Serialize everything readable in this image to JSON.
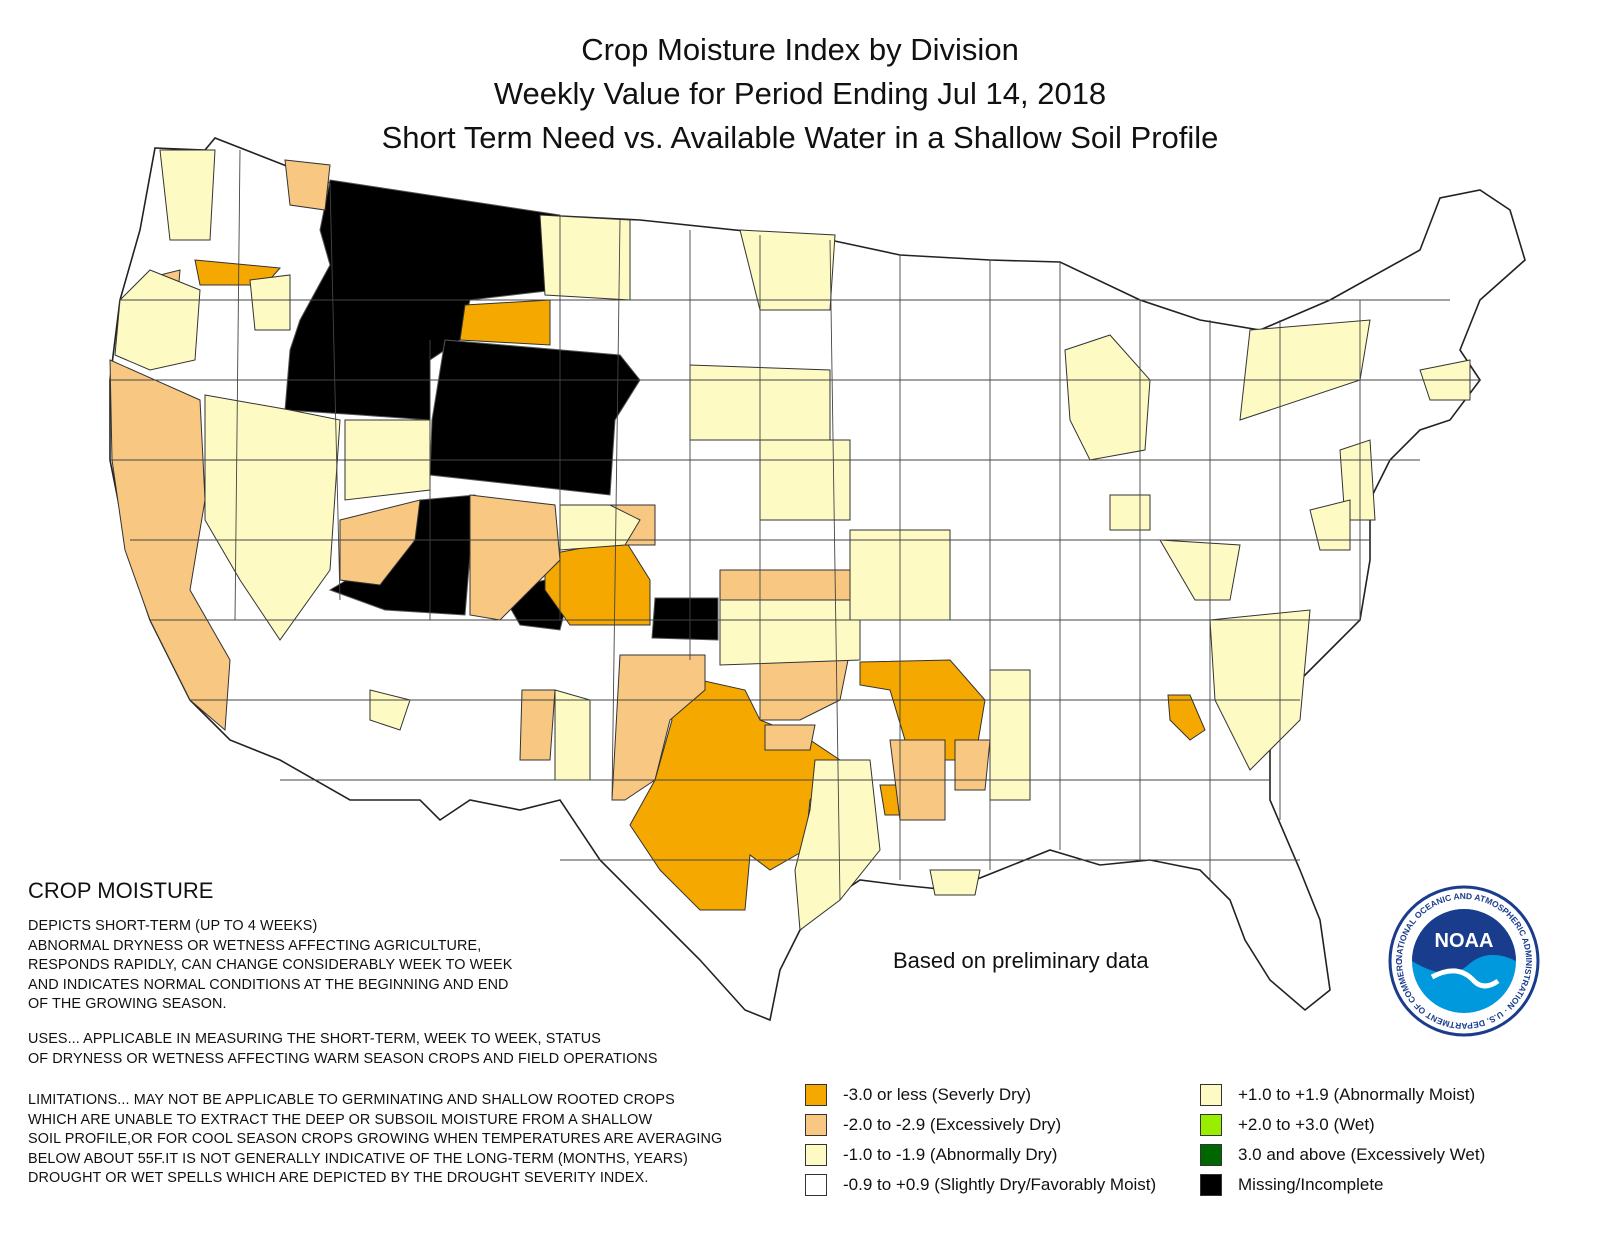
{
  "title": {
    "line1": "Crop Moisture Index by Division",
    "line2": "Weekly Value for Period Ending Jul 14, 2018",
    "line3": "Short Term Need vs. Available Water in a Shallow Soil Profile"
  },
  "note": "Based on preliminary data",
  "info": {
    "heading": "CROP MOISTURE",
    "depicts": "DEPICTS SHORT-TERM (UP TO 4 WEEKS)\nABNORMAL DRYNESS OR WETNESS AFFECTING AGRICULTURE,\nRESPONDS RAPIDLY, CAN CHANGE CONSIDERABLY WEEK TO WEEK\nAND INDICATES NORMAL CONDITIONS AT THE BEGINNING AND END\nOF THE GROWING SEASON.",
    "uses": "USES... APPLICABLE IN MEASURING THE SHORT-TERM, WEEK TO WEEK, STATUS\nOF DRYNESS OR WETNESS AFFECTING WARM SEASON CROPS AND FIELD OPERATIONS",
    "limitations": "LIMITATIONS... MAY NOT BE APPLICABLE TO GERMINATING AND SHALLOW ROOTED CROPS\nWHICH ARE UNABLE TO EXTRACT THE DEEP OR SUBSOIL MOISTURE FROM A SHALLOW\nSOIL PROFILE,OR FOR COOL SEASON CROPS GROWING WHEN TEMPERATURES ARE AVERAGING\nBELOW ABOUT 55F.IT IS NOT GENERALLY INDICATIVE OF THE LONG-TERM (MONTHS, YEARS)\nDROUGHT OR WET SPELLS WHICH ARE DEPICTED BY THE DROUGHT SEVERITY INDEX."
  },
  "legend": [
    {
      "label": "-3.0 or less (Severly Dry)",
      "color": "#f5a800"
    },
    {
      "label": "-2.0 to -2.9 (Excessively Dry)",
      "color": "#f8c882"
    },
    {
      "label": "-1.0 to -1.9 (Abnormally Dry)",
      "color": "#fdfbc3"
    },
    {
      "label": "-0.9 to +0.9 (Slightly Dry/Favorably Moist)",
      "color": "#ffffff"
    },
    {
      "label": "+1.0 to +1.9 (Abnormally Moist)",
      "color": "#fdfbc3"
    },
    {
      "label": "+2.0 to +3.0 (Wet)",
      "color": "#99ee00"
    },
    {
      "label": "3.0 and above (Excessively Wet)",
      "color": "#006600"
    },
    {
      "label": "Missing/Incomplete",
      "color": "#000000"
    }
  ],
  "logo": {
    "text": "NOAA",
    "ring_text": "NATIONAL OCEANIC AND ATMOSPHERIC ADMINISTRATION · U.S. DEPARTMENT OF COMMERCE",
    "colors": {
      "blue": "#0099dd",
      "navy": "#1a3c8c"
    }
  }
}
